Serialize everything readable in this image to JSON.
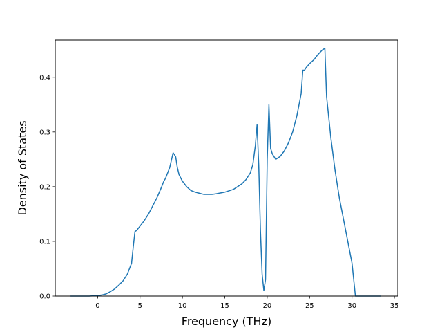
{
  "chart_data": {
    "type": "line",
    "title": "",
    "xlabel": "Frequency (THz)",
    "ylabel": "Density of States",
    "xlim": [
      -5.0,
      35.4
    ],
    "ylim": [
      0,
      0.468
    ],
    "xticks": [
      0,
      5,
      10,
      15,
      20,
      25,
      30,
      35
    ],
    "yticks": [
      0.0,
      0.1,
      0.2,
      0.3,
      0.4
    ],
    "ytick_labels": [
      "0.0",
      "0.1",
      "0.2",
      "0.3",
      "0.4"
    ],
    "grid": false,
    "legend": "none",
    "series": [
      {
        "color": "#1f77b4",
        "x": [
          -3.2,
          -1.0,
          0.0,
          0.5,
          1.0,
          1.5,
          2.0,
          2.5,
          3.0,
          3.5,
          4.0,
          4.2,
          4.4,
          4.6,
          5.0,
          5.5,
          6.0,
          6.5,
          7.0,
          7.5,
          7.8,
          8.0,
          8.5,
          8.9,
          9.2,
          9.4,
          9.6,
          10.0,
          10.5,
          11.0,
          11.5,
          12.0,
          12.5,
          13.0,
          13.5,
          14.0,
          15.0,
          16.0,
          17.0,
          17.5,
          18.0,
          18.3,
          18.6,
          18.8,
          19.0,
          19.2,
          19.4,
          19.6,
          19.8,
          20.0,
          20.2,
          20.4,
          20.6,
          21.0,
          21.5,
          22.0,
          22.5,
          23.0,
          23.5,
          24.0,
          24.2,
          24.4,
          24.6,
          25.0,
          25.5,
          26.0,
          26.5,
          26.8,
          27.0,
          27.3,
          27.5,
          28.0,
          28.5,
          29.0,
          29.5,
          30.0,
          30.2,
          30.4,
          30.6,
          33.4
        ],
        "y": [
          0,
          0,
          0.001,
          0.002,
          0.004,
          0.008,
          0.013,
          0.02,
          0.028,
          0.04,
          0.06,
          0.09,
          0.118,
          0.12,
          0.128,
          0.138,
          0.15,
          0.165,
          0.18,
          0.198,
          0.21,
          0.215,
          0.235,
          0.262,
          0.255,
          0.235,
          0.222,
          0.21,
          0.2,
          0.193,
          0.19,
          0.188,
          0.186,
          0.186,
          0.186,
          0.187,
          0.19,
          0.195,
          0.205,
          0.213,
          0.225,
          0.24,
          0.275,
          0.313,
          0.24,
          0.12,
          0.04,
          0.01,
          0.03,
          0.25,
          0.35,
          0.27,
          0.26,
          0.25,
          0.255,
          0.265,
          0.28,
          0.3,
          0.33,
          0.37,
          0.413,
          0.413,
          0.418,
          0.425,
          0.432,
          0.442,
          0.45,
          0.453,
          0.365,
          0.32,
          0.29,
          0.23,
          0.18,
          0.14,
          0.1,
          0.06,
          0.03,
          0,
          0,
          0
        ]
      }
    ]
  }
}
